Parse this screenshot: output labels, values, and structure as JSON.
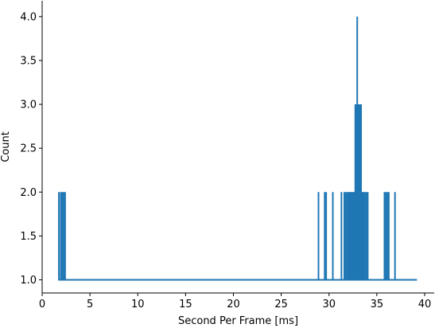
{
  "chart_data": {
    "type": "line",
    "xlabel": "Second Per Frame [ms]",
    "ylabel": "Count",
    "xlim": [
      0,
      41
    ],
    "ylim": [
      0.85,
      4.18
    ],
    "x_ticks": [
      0,
      5,
      10,
      15,
      20,
      25,
      30,
      35,
      40
    ],
    "y_ticks": [
      1.0,
      1.5,
      2.0,
      2.5,
      3.0,
      3.5,
      4.0
    ],
    "x_tick_labels": [
      "0",
      "5",
      "10",
      "15",
      "20",
      "25",
      "30",
      "35",
      "40"
    ],
    "y_tick_labels": [
      "1.0",
      "1.5",
      "2.0",
      "2.5",
      "3.0",
      "3.5",
      "4.0"
    ],
    "grid": false,
    "line_color": "#1f77b4",
    "series": [
      {
        "x_min": 1.7,
        "x_max": 39.2,
        "baseline": 1.0,
        "spikes": [
          {
            "x": 1.75,
            "y": 2
          },
          {
            "x": 1.95,
            "y": 2
          },
          {
            "x": 2.1,
            "y": 2
          },
          {
            "x": 2.25,
            "y": 2
          },
          {
            "x": 2.4,
            "y": 2
          },
          {
            "x": 28.9,
            "y": 2
          },
          {
            "x": 29.55,
            "y": 2
          },
          {
            "x": 29.7,
            "y": 2
          },
          {
            "x": 30.4,
            "y": 2
          },
          {
            "x": 31.3,
            "y": 2
          },
          {
            "x": 31.6,
            "y": 2
          },
          {
            "x": 31.75,
            "y": 2
          },
          {
            "x": 31.9,
            "y": 2
          },
          {
            "x": 32.05,
            "y": 2
          },
          {
            "x": 32.15,
            "y": 2
          },
          {
            "x": 32.25,
            "y": 2
          },
          {
            "x": 32.35,
            "y": 2
          },
          {
            "x": 32.45,
            "y": 2
          },
          {
            "x": 32.55,
            "y": 2
          },
          {
            "x": 32.65,
            "y": 2
          },
          {
            "x": 32.75,
            "y": 3
          },
          {
            "x": 32.85,
            "y": 3
          },
          {
            "x": 32.95,
            "y": 4
          },
          {
            "x": 33.05,
            "y": 3
          },
          {
            "x": 33.15,
            "y": 3
          },
          {
            "x": 33.25,
            "y": 3
          },
          {
            "x": 33.35,
            "y": 3
          },
          {
            "x": 33.45,
            "y": 2
          },
          {
            "x": 33.55,
            "y": 2
          },
          {
            "x": 33.65,
            "y": 2
          },
          {
            "x": 33.75,
            "y": 2
          },
          {
            "x": 33.9,
            "y": 2
          },
          {
            "x": 34.05,
            "y": 2
          },
          {
            "x": 35.8,
            "y": 2
          },
          {
            "x": 35.95,
            "y": 2
          },
          {
            "x": 36.1,
            "y": 2
          },
          {
            "x": 36.25,
            "y": 2
          },
          {
            "x": 36.9,
            "y": 2
          }
        ]
      }
    ]
  }
}
